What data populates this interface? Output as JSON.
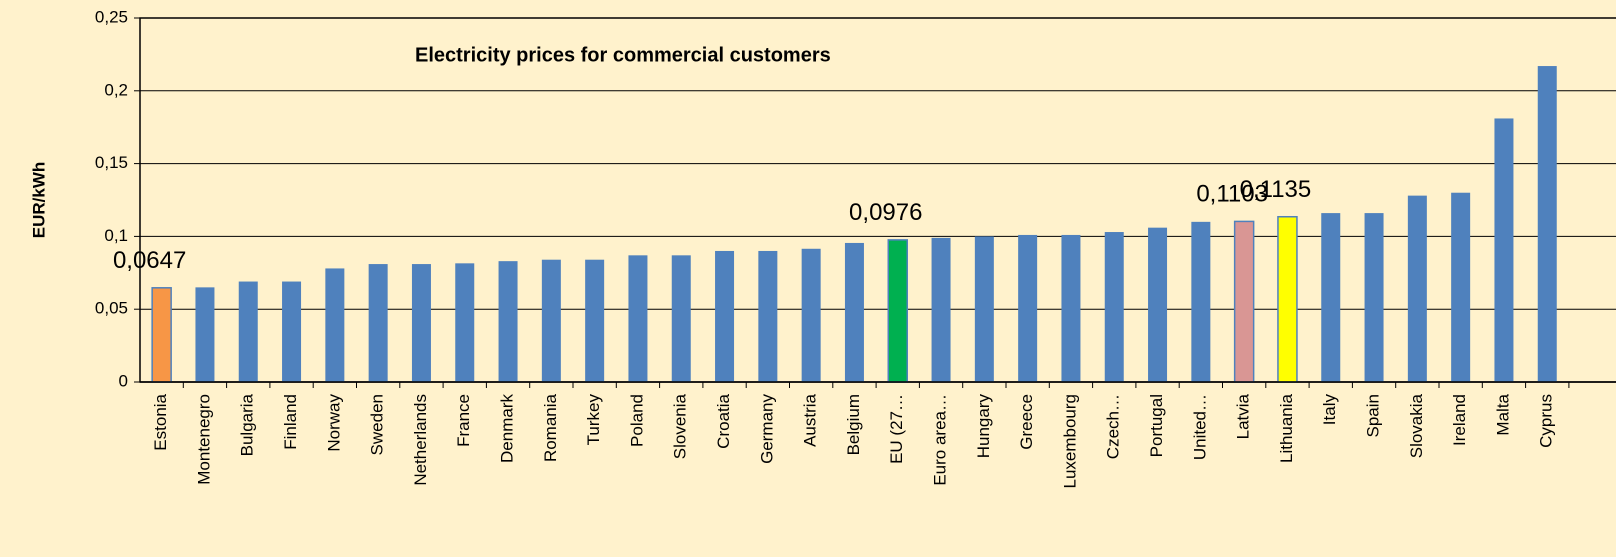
{
  "chart_data": {
    "type": "bar",
    "title": "Electricity prices for commercial customers",
    "ylabel": "EUR/kWh",
    "categories": [
      "Estonia",
      "Montenegro",
      "Bulgaria",
      "Finland",
      "Norway",
      "Sweden",
      "Netherlands",
      "France",
      "Denmark",
      "Romania",
      "Turkey",
      "Poland",
      "Slovenia",
      "Croatia",
      "Germany",
      "Austria",
      "Belgium",
      "EU (27…",
      "Euro area…",
      "Hungary",
      "Greece",
      "Luxembourg",
      "Czech…",
      "Portugal",
      "United…",
      "Latvia",
      "Lithuania",
      "Italy",
      "Spain",
      "Slovakia",
      "Ireland",
      "Malta",
      "Cyprus"
    ],
    "values": [
      0.0647,
      0.065,
      0.069,
      0.069,
      0.078,
      0.081,
      0.081,
      0.0815,
      0.083,
      0.084,
      0.084,
      0.087,
      0.087,
      0.09,
      0.09,
      0.0915,
      0.0955,
      0.0976,
      0.099,
      0.1,
      0.101,
      0.101,
      0.103,
      0.106,
      0.11,
      0.1103,
      0.1135,
      0.116,
      0.116,
      0.128,
      0.13,
      0.181,
      0.217
    ],
    "value_labels": [
      "0,0647",
      null,
      null,
      null,
      null,
      null,
      null,
      null,
      null,
      null,
      null,
      null,
      null,
      null,
      null,
      null,
      null,
      "0,0976",
      null,
      null,
      null,
      null,
      null,
      null,
      null,
      "0,1103",
      "0,1135",
      null,
      null,
      null,
      null,
      null,
      null
    ],
    "colors": [
      "#f79646",
      "#4f81bd",
      "#4f81bd",
      "#4f81bd",
      "#4f81bd",
      "#4f81bd",
      "#4f81bd",
      "#4f81bd",
      "#4f81bd",
      "#4f81bd",
      "#4f81bd",
      "#4f81bd",
      "#4f81bd",
      "#4f81bd",
      "#4f81bd",
      "#4f81bd",
      "#4f81bd",
      "#00b050",
      "#4f81bd",
      "#4f81bd",
      "#4f81bd",
      "#4f81bd",
      "#4f81bd",
      "#4f81bd",
      "#4f81bd",
      "#d99694",
      "#ffff00",
      "#4f81bd",
      "#4f81bd",
      "#4f81bd",
      "#4f81bd",
      "#4f81bd",
      "#4f81bd"
    ],
    "ylim": [
      0,
      0.25
    ],
    "yticks": [
      0,
      {
        "value": 0.05,
        "label": "0,05"
      },
      {
        "value": 0.1,
        "label": "0,1"
      },
      {
        "value": 0.15,
        "label": "0,15"
      },
      {
        "value": 0.2,
        "label": "0,2"
      },
      {
        "value": 0.25,
        "label": "0,25"
      }
    ],
    "grid": true
  }
}
